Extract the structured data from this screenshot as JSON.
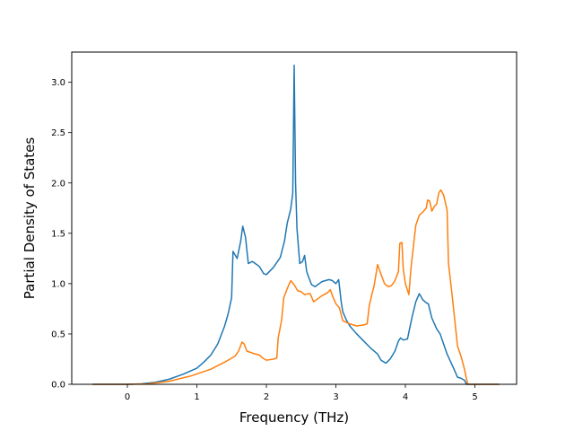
{
  "chart_data": {
    "type": "line",
    "title": "",
    "xlabel": "Frequency (THz)",
    "ylabel": "Partial Density of States",
    "xlim": [
      -0.8,
      5.6
    ],
    "ylim": [
      0.0,
      3.3
    ],
    "xticks": [
      0,
      1,
      2,
      3,
      4,
      5
    ],
    "yticks": [
      0.0,
      0.5,
      1.0,
      1.5,
      2.0,
      2.5,
      3.0
    ],
    "xtick_labels": [
      "0",
      "1",
      "2",
      "3",
      "4",
      "5"
    ],
    "ytick_labels": [
      "0.0",
      "0.5",
      "1.0",
      "1.5",
      "2.0",
      "2.5",
      "3.0"
    ],
    "grid": false,
    "legend": null,
    "series": [
      {
        "color": "#1f77b4",
        "points": [
          [
            -0.5,
            0.0
          ],
          [
            -0.2,
            0.0
          ],
          [
            0.0,
            0.0
          ],
          [
            0.2,
            0.005
          ],
          [
            0.4,
            0.02
          ],
          [
            0.6,
            0.05
          ],
          [
            0.8,
            0.1
          ],
          [
            1.0,
            0.16
          ],
          [
            1.1,
            0.22
          ],
          [
            1.2,
            0.29
          ],
          [
            1.3,
            0.4
          ],
          [
            1.4,
            0.58
          ],
          [
            1.45,
            0.7
          ],
          [
            1.5,
            0.86
          ],
          [
            1.52,
            1.32
          ],
          [
            1.58,
            1.25
          ],
          [
            1.63,
            1.42
          ],
          [
            1.66,
            1.57
          ],
          [
            1.7,
            1.46
          ],
          [
            1.74,
            1.2
          ],
          [
            1.8,
            1.22
          ],
          [
            1.9,
            1.17
          ],
          [
            1.96,
            1.1
          ],
          [
            2.0,
            1.09
          ],
          [
            2.1,
            1.16
          ],
          [
            2.2,
            1.26
          ],
          [
            2.26,
            1.42
          ],
          [
            2.3,
            1.6
          ],
          [
            2.35,
            1.74
          ],
          [
            2.38,
            1.9
          ],
          [
            2.4,
            3.17
          ],
          [
            2.42,
            2.0
          ],
          [
            2.44,
            1.55
          ],
          [
            2.48,
            1.2
          ],
          [
            2.52,
            1.22
          ],
          [
            2.55,
            1.28
          ],
          [
            2.58,
            1.12
          ],
          [
            2.6,
            1.08
          ],
          [
            2.65,
            0.99
          ],
          [
            2.7,
            0.97
          ],
          [
            2.8,
            1.02
          ],
          [
            2.9,
            1.04
          ],
          [
            2.95,
            1.03
          ],
          [
            3.0,
            1.0
          ],
          [
            3.04,
            1.04
          ],
          [
            3.08,
            0.8
          ],
          [
            3.1,
            0.72
          ],
          [
            3.15,
            0.64
          ],
          [
            3.2,
            0.58
          ],
          [
            3.3,
            0.5
          ],
          [
            3.4,
            0.43
          ],
          [
            3.5,
            0.36
          ],
          [
            3.6,
            0.3
          ],
          [
            3.65,
            0.24
          ],
          [
            3.72,
            0.21
          ],
          [
            3.78,
            0.25
          ],
          [
            3.85,
            0.33
          ],
          [
            3.9,
            0.43
          ],
          [
            3.93,
            0.46
          ],
          [
            3.97,
            0.44
          ],
          [
            4.03,
            0.45
          ],
          [
            4.06,
            0.55
          ],
          [
            4.1,
            0.68
          ],
          [
            4.15,
            0.82
          ],
          [
            4.2,
            0.9
          ],
          [
            4.25,
            0.84
          ],
          [
            4.3,
            0.81
          ],
          [
            4.33,
            0.8
          ],
          [
            4.38,
            0.66
          ],
          [
            4.45,
            0.55
          ],
          [
            4.5,
            0.5
          ],
          [
            4.6,
            0.3
          ],
          [
            4.7,
            0.15
          ],
          [
            4.75,
            0.07
          ],
          [
            4.8,
            0.06
          ],
          [
            4.85,
            0.04
          ],
          [
            4.88,
            0.0
          ],
          [
            5.0,
            0.0
          ],
          [
            5.35,
            0.0
          ]
        ]
      },
      {
        "color": "#ff7f0e",
        "points": [
          [
            -0.5,
            0.0
          ],
          [
            -0.2,
            0.0
          ],
          [
            0.0,
            0.0
          ],
          [
            0.3,
            0.005
          ],
          [
            0.6,
            0.03
          ],
          [
            0.9,
            0.08
          ],
          [
            1.2,
            0.15
          ],
          [
            1.4,
            0.22
          ],
          [
            1.55,
            0.28
          ],
          [
            1.6,
            0.33
          ],
          [
            1.65,
            0.42
          ],
          [
            1.68,
            0.4
          ],
          [
            1.72,
            0.33
          ],
          [
            1.8,
            0.31
          ],
          [
            1.9,
            0.29
          ],
          [
            1.95,
            0.26
          ],
          [
            2.0,
            0.24
          ],
          [
            2.1,
            0.25
          ],
          [
            2.15,
            0.26
          ],
          [
            2.17,
            0.46
          ],
          [
            2.22,
            0.64
          ],
          [
            2.25,
            0.86
          ],
          [
            2.3,
            0.95
          ],
          [
            2.35,
            1.03
          ],
          [
            2.4,
            0.99
          ],
          [
            2.45,
            0.93
          ],
          [
            2.5,
            0.92
          ],
          [
            2.55,
            0.89
          ],
          [
            2.6,
            0.9
          ],
          [
            2.63,
            0.9
          ],
          [
            2.68,
            0.82
          ],
          [
            2.72,
            0.84
          ],
          [
            2.8,
            0.88
          ],
          [
            2.88,
            0.91
          ],
          [
            2.92,
            0.94
          ],
          [
            2.95,
            0.88
          ],
          [
            3.0,
            0.8
          ],
          [
            3.05,
            0.76
          ],
          [
            3.1,
            0.63
          ],
          [
            3.2,
            0.6
          ],
          [
            3.3,
            0.58
          ],
          [
            3.4,
            0.59
          ],
          [
            3.45,
            0.6
          ],
          [
            3.48,
            0.78
          ],
          [
            3.52,
            0.9
          ],
          [
            3.55,
            0.98
          ],
          [
            3.6,
            1.19
          ],
          [
            3.65,
            1.09
          ],
          [
            3.7,
            1.0
          ],
          [
            3.75,
            0.97
          ],
          [
            3.8,
            0.98
          ],
          [
            3.85,
            1.03
          ],
          [
            3.9,
            1.12
          ],
          [
            3.92,
            1.4
          ],
          [
            3.95,
            1.41
          ],
          [
            3.97,
            1.14
          ],
          [
            4.0,
            1.0
          ],
          [
            4.05,
            0.89
          ],
          [
            4.08,
            1.15
          ],
          [
            4.12,
            1.4
          ],
          [
            4.15,
            1.58
          ],
          [
            4.2,
            1.68
          ],
          [
            4.25,
            1.71
          ],
          [
            4.3,
            1.75
          ],
          [
            4.32,
            1.83
          ],
          [
            4.35,
            1.82
          ],
          [
            4.38,
            1.72
          ],
          [
            4.42,
            1.77
          ],
          [
            4.45,
            1.79
          ],
          [
            4.48,
            1.9
          ],
          [
            4.51,
            1.93
          ],
          [
            4.55,
            1.88
          ],
          [
            4.6,
            1.73
          ],
          [
            4.62,
            1.2
          ],
          [
            4.67,
            0.9
          ],
          [
            4.75,
            0.38
          ],
          [
            4.8,
            0.28
          ],
          [
            4.85,
            0.15
          ],
          [
            4.88,
            0.05
          ],
          [
            4.9,
            0.0
          ],
          [
            5.0,
            0.0
          ],
          [
            5.35,
            0.0
          ]
        ]
      }
    ]
  }
}
